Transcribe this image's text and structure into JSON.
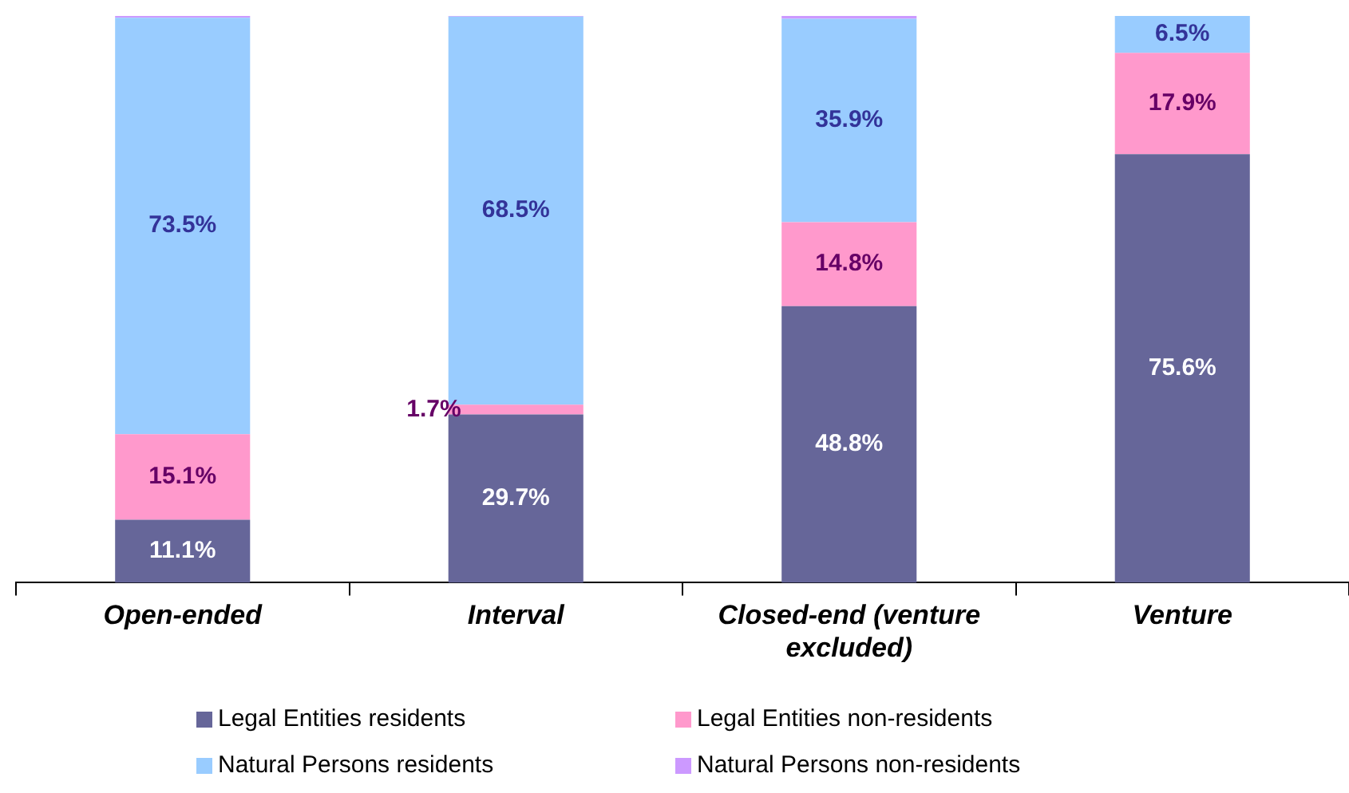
{
  "chart_data": {
    "type": "bar",
    "stacked": true,
    "categories": [
      "Open-ended",
      "Interval",
      "Closed-end (venture excluded)",
      "Venture"
    ],
    "ylim": [
      0,
      100
    ],
    "tick_labels": "x",
    "grid": false,
    "legend": "bottom",
    "series": [
      {
        "name": "Legal Entities residents",
        "color": "#666699",
        "values": [
          11.1,
          29.7,
          48.8,
          75.6
        ],
        "value_labels": [
          "11.1%",
          "29.7%",
          "48.8%",
          "75.6%"
        ]
      },
      {
        "name": "Legal Entities non-residents",
        "color": "#ff99cc",
        "values": [
          15.1,
          1.7,
          14.8,
          17.9
        ],
        "value_labels": [
          "15.1%",
          "1.7%",
          "14.8%",
          "17.9%"
        ]
      },
      {
        "name": "Natural Persons residents",
        "color": "#99ccff",
        "values": [
          73.5,
          68.5,
          35.9,
          6.5
        ],
        "value_labels": [
          "73.5%",
          "68.5%",
          "35.9%",
          "6.5%"
        ]
      },
      {
        "name": "Natural Persons non-residents",
        "color": "#cc99ff",
        "values": [
          0.3,
          0.1,
          0.5,
          0
        ],
        "value_labels": [
          null,
          null,
          null,
          null
        ]
      }
    ]
  }
}
